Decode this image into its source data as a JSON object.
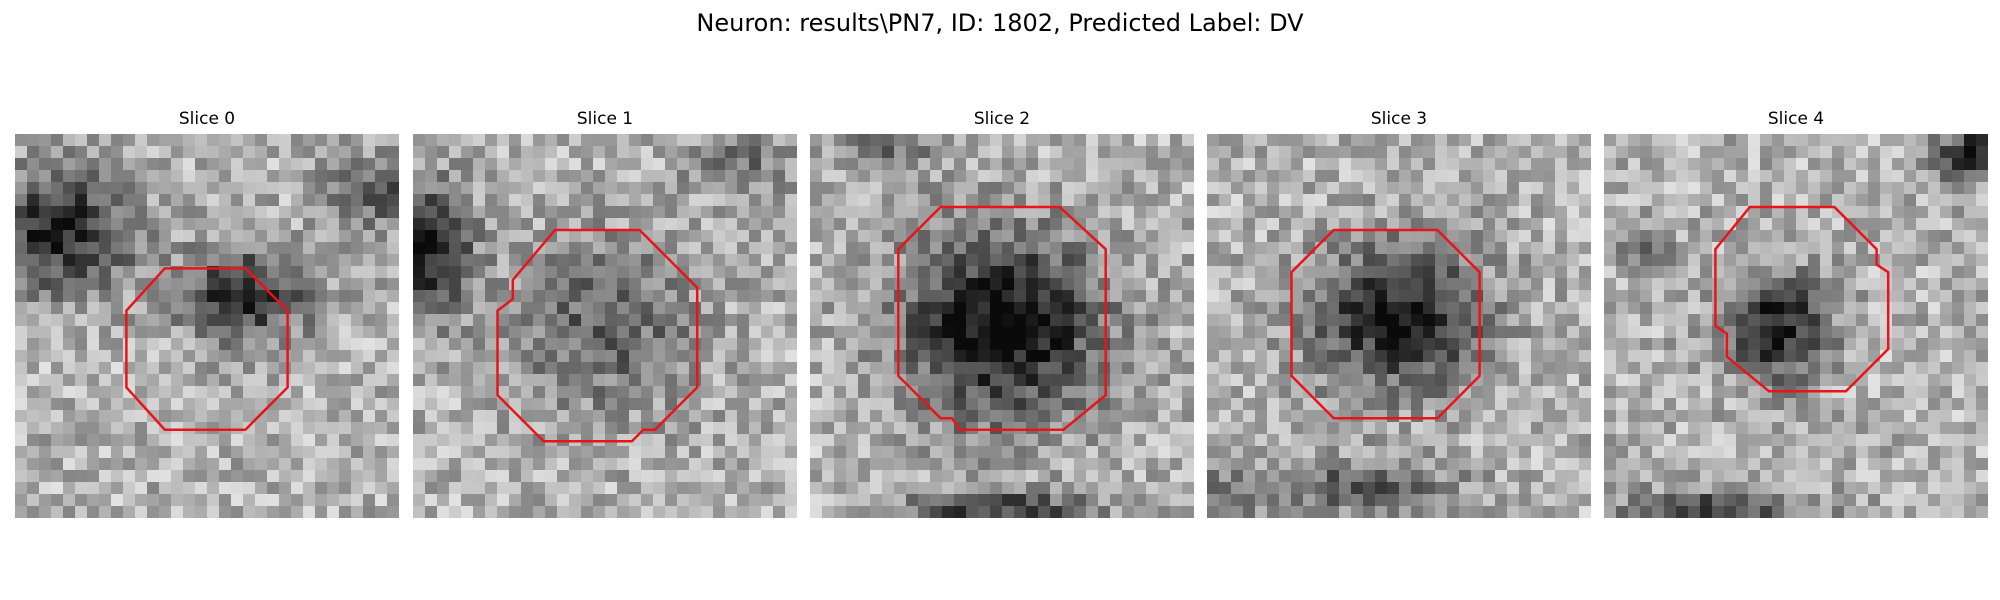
{
  "figure_title": "Neuron: results\\PN7, ID: 1802, Predicted Label: DV",
  "contour_color": "#e8141a",
  "panels": [
    {
      "title": "Slice 0",
      "seed": 11,
      "dark": [
        [
          0.12,
          0.25,
          0.22,
          0.18,
          0.6
        ],
        [
          0.6,
          0.42,
          0.2,
          0.14,
          0.55
        ],
        [
          0.95,
          0.15,
          0.15,
          0.12,
          0.35
        ]
      ],
      "contour": [
        [
          0.39,
          0.35
        ],
        [
          0.6,
          0.35
        ],
        [
          0.71,
          0.46
        ],
        [
          0.71,
          0.66
        ],
        [
          0.6,
          0.77
        ],
        [
          0.39,
          0.77
        ],
        [
          0.29,
          0.66
        ],
        [
          0.29,
          0.46
        ]
      ]
    },
    {
      "title": "Slice 1",
      "seed": 23,
      "dark": [
        [
          0.05,
          0.3,
          0.12,
          0.2,
          0.6
        ],
        [
          0.5,
          0.5,
          0.28,
          0.26,
          0.32
        ],
        [
          0.85,
          0.08,
          0.15,
          0.1,
          0.25
        ]
      ],
      "contour": [
        [
          0.37,
          0.25
        ],
        [
          0.59,
          0.25
        ],
        [
          0.74,
          0.4
        ],
        [
          0.74,
          0.66
        ],
        [
          0.63,
          0.77
        ],
        [
          0.6,
          0.77
        ],
        [
          0.57,
          0.8
        ],
        [
          0.34,
          0.8
        ],
        [
          0.22,
          0.68
        ],
        [
          0.22,
          0.46
        ],
        [
          0.26,
          0.43
        ],
        [
          0.26,
          0.38
        ]
      ]
    },
    {
      "title": "Slice 2",
      "seed": 37,
      "dark": [
        [
          0.5,
          0.5,
          0.3,
          0.28,
          0.7
        ],
        [
          0.2,
          0.05,
          0.12,
          0.08,
          0.3
        ],
        [
          0.5,
          0.98,
          0.3,
          0.06,
          0.45
        ]
      ],
      "contour": [
        [
          0.34,
          0.19
        ],
        [
          0.65,
          0.19
        ],
        [
          0.77,
          0.3
        ],
        [
          0.77,
          0.68
        ],
        [
          0.66,
          0.77
        ],
        [
          0.39,
          0.77
        ],
        [
          0.37,
          0.74
        ],
        [
          0.34,
          0.74
        ],
        [
          0.23,
          0.63
        ],
        [
          0.23,
          0.3
        ]
      ]
    },
    {
      "title": "Slice 3",
      "seed": 53,
      "dark": [
        [
          0.5,
          0.48,
          0.26,
          0.22,
          0.6
        ],
        [
          0.4,
          0.92,
          0.3,
          0.08,
          0.35
        ],
        [
          0.05,
          0.95,
          0.1,
          0.1,
          0.2
        ]
      ],
      "contour": [
        [
          0.33,
          0.25
        ],
        [
          0.6,
          0.25
        ],
        [
          0.71,
          0.36
        ],
        [
          0.71,
          0.63
        ],
        [
          0.6,
          0.74
        ],
        [
          0.33,
          0.74
        ],
        [
          0.22,
          0.63
        ],
        [
          0.22,
          0.36
        ]
      ]
    },
    {
      "title": "Slice 4",
      "seed": 71,
      "dark": [
        [
          0.45,
          0.5,
          0.16,
          0.16,
          0.6
        ],
        [
          0.95,
          0.05,
          0.1,
          0.08,
          0.55
        ],
        [
          0.3,
          0.98,
          0.3,
          0.06,
          0.45
        ],
        [
          0.1,
          0.3,
          0.08,
          0.08,
          0.3
        ]
      ],
      "contour": [
        [
          0.38,
          0.19
        ],
        [
          0.6,
          0.19
        ],
        [
          0.71,
          0.3
        ],
        [
          0.71,
          0.34
        ],
        [
          0.74,
          0.36
        ],
        [
          0.74,
          0.56
        ],
        [
          0.63,
          0.67
        ],
        [
          0.43,
          0.67
        ],
        [
          0.32,
          0.58
        ],
        [
          0.32,
          0.52
        ],
        [
          0.29,
          0.5
        ],
        [
          0.29,
          0.3
        ]
      ]
    }
  ]
}
